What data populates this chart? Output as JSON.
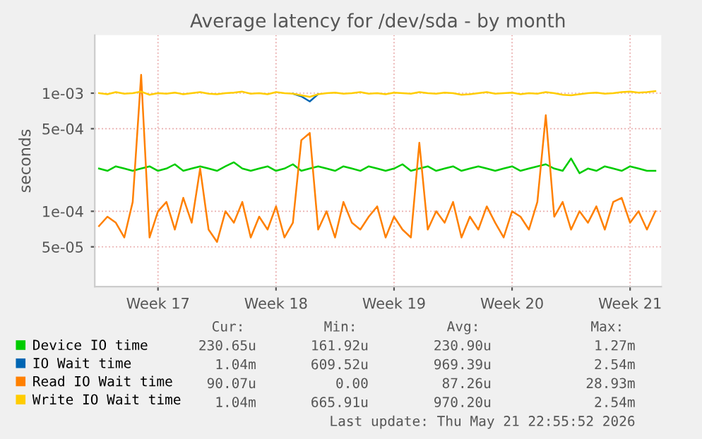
{
  "chart_data": {
    "type": "line",
    "title": "Average latency for /dev/sda - by month",
    "ylabel": "seconds",
    "categories": [
      null,
      null,
      null,
      null,
      null,
      null,
      null,
      "Week 17",
      null,
      null,
      null,
      null,
      null,
      null,
      null,
      null,
      null,
      null,
      null,
      null,
      null,
      "Week 18",
      null,
      null,
      null,
      null,
      null,
      null,
      null,
      null,
      null,
      null,
      null,
      null,
      null,
      "Week 19",
      null,
      null,
      null,
      null,
      null,
      null,
      null,
      null,
      null,
      null,
      null,
      null,
      null,
      "Week 20",
      null,
      null,
      null,
      null,
      null,
      null,
      null,
      null,
      null,
      null,
      null,
      null,
      null,
      "Week 21",
      null,
      null,
      null
    ],
    "series": [
      {
        "name": "Device IO time",
        "color": "#00cc00",
        "values": [
          0.00023,
          0.00022,
          0.00024,
          0.00023,
          0.00022,
          0.00023,
          0.00024,
          0.00022,
          0.00023,
          0.00025,
          0.00022,
          0.00023,
          0.00024,
          0.00023,
          0.00022,
          0.00024,
          0.00026,
          0.00023,
          0.00022,
          0.00023,
          0.00024,
          0.00022,
          0.00023,
          0.00025,
          0.00022,
          0.00023,
          0.00024,
          0.00023,
          0.00022,
          0.00024,
          0.00023,
          0.00022,
          0.00024,
          0.00023,
          0.00022,
          0.00023,
          0.00025,
          0.00022,
          0.00023,
          0.00024,
          0.00022,
          0.00023,
          0.00024,
          0.00022,
          0.00023,
          0.00024,
          0.00023,
          0.00022,
          0.00023,
          0.00024,
          0.00022,
          0.00023,
          0.00024,
          0.00025,
          0.00023,
          0.00022,
          0.00028,
          0.00021,
          0.00023,
          0.00022,
          0.00024,
          0.00023,
          0.00022,
          0.00024,
          0.00023,
          0.00022,
          0.00022
        ]
      },
      {
        "name": "IO Wait time",
        "color": "#0066b3",
        "values": [
          null,
          null,
          null,
          null,
          null,
          null,
          null,
          null,
          null,
          null,
          null,
          null,
          null,
          null,
          null,
          null,
          null,
          null,
          null,
          null,
          null,
          null,
          null,
          0.00099,
          0.00094,
          0.00085,
          0.00098,
          null,
          null,
          null,
          null,
          null,
          null,
          null,
          null,
          null,
          null,
          null,
          null,
          null,
          null,
          null,
          null,
          null,
          null,
          null,
          null,
          null,
          null,
          null,
          null,
          null,
          null,
          null,
          null,
          null,
          null,
          null,
          null,
          null,
          null,
          null,
          null,
          null,
          null,
          null,
          null
        ]
      },
      {
        "name": "Read IO Wait time",
        "color": "#ff8000",
        "values": [
          7.5e-05,
          9e-05,
          8e-05,
          6e-05,
          0.00012,
          0.00143,
          6e-05,
          0.0001,
          0.00012,
          7e-05,
          0.00013,
          8e-05,
          0.00023,
          7e-05,
          5.5e-05,
          0.0001,
          8e-05,
          0.00012,
          6e-05,
          9e-05,
          7e-05,
          0.00011,
          6e-05,
          8e-05,
          0.0004,
          0.00046,
          7e-05,
          0.0001,
          6e-05,
          0.00012,
          8e-05,
          7e-05,
          9e-05,
          0.00011,
          6e-05,
          9e-05,
          7e-05,
          6e-05,
          0.00038,
          7e-05,
          0.0001,
          8e-05,
          0.00012,
          6e-05,
          9e-05,
          7e-05,
          0.00011,
          8e-05,
          6e-05,
          0.0001,
          9e-05,
          7e-05,
          0.00012,
          0.00065,
          9e-05,
          0.00012,
          7e-05,
          0.0001,
          8e-05,
          0.00011,
          7e-05,
          0.00012,
          0.00013,
          8e-05,
          0.0001,
          7e-05,
          0.0001
        ]
      },
      {
        "name": "Write IO Wait time",
        "color": "#ffcc00",
        "values": [
          0.001,
          0.00098,
          0.00102,
          0.00099,
          0.001,
          0.00103,
          0.00097,
          0.001,
          0.00099,
          0.00101,
          0.00098,
          0.001,
          0.00102,
          0.00099,
          0.00098,
          0.001,
          0.00101,
          0.00103,
          0.00099,
          0.001,
          0.00098,
          0.00102,
          0.001,
          0.00099,
          0.00096,
          0.00093,
          0.00098,
          0.001,
          0.00101,
          0.00099,
          0.001,
          0.00102,
          0.00099,
          0.001,
          0.00098,
          0.00101,
          0.001,
          0.00099,
          0.00102,
          0.001,
          0.00099,
          0.00101,
          0.001,
          0.00097,
          0.00098,
          0.001,
          0.00102,
          0.00099,
          0.001,
          0.00101,
          0.00098,
          0.001,
          0.00099,
          0.00102,
          0.001,
          0.00097,
          0.00096,
          0.00098,
          0.001,
          0.00101,
          0.00099,
          0.001,
          0.00102,
          0.00103,
          0.00101,
          0.00102,
          0.00104
        ]
      }
    ],
    "log": "y",
    "ylim": [
      2.3e-05,
      0.0031
    ],
    "yticks": [
      {
        "value": 5e-05,
        "label": "5e-05"
      },
      {
        "value": 0.0001,
        "label": "1e-04"
      },
      {
        "value": 0.0005,
        "label": "5e-04"
      },
      {
        "value": 0.001,
        "label": "1e-03"
      }
    ],
    "grid": true,
    "legend": "bottom",
    "annotations": [
      "Cur:",
      "Min:",
      "Avg:",
      "Max:",
      "230.65u",
      "161.92u",
      "230.90u",
      "1.27m",
      "1.04m",
      "609.52u",
      "969.39u",
      "2.54m",
      "90.07u",
      "0.00",
      "87.26u",
      "28.93m",
      "1.04m",
      "665.91u",
      "970.20u",
      "2.54m",
      "Last update: Thu May 21 22:55:52 2026"
    ]
  }
}
